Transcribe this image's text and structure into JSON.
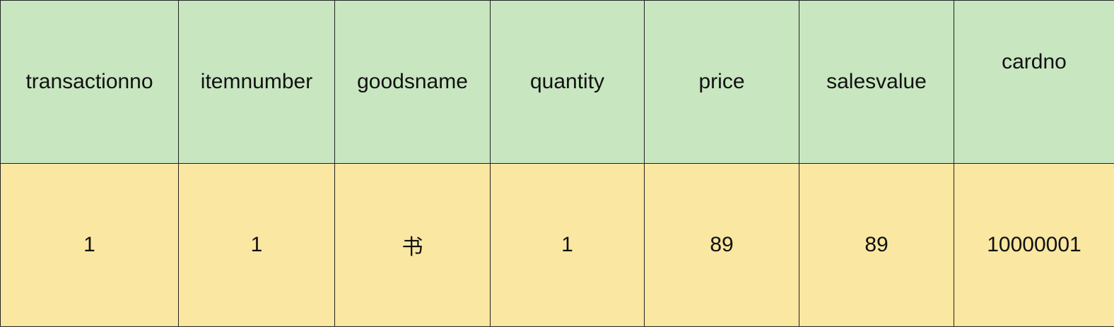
{
  "colors": {
    "header_bg": "#c8e6c0",
    "row_bg": "#fae7a1",
    "border": "#222222"
  },
  "table": {
    "headers": [
      "transactionno",
      "itemnumber",
      "goodsname",
      "quantity",
      "price",
      "salesvalue",
      "cardno"
    ],
    "rows": [
      [
        "1",
        "1",
        "书",
        "1",
        "89",
        "89",
        "10000001"
      ]
    ]
  }
}
